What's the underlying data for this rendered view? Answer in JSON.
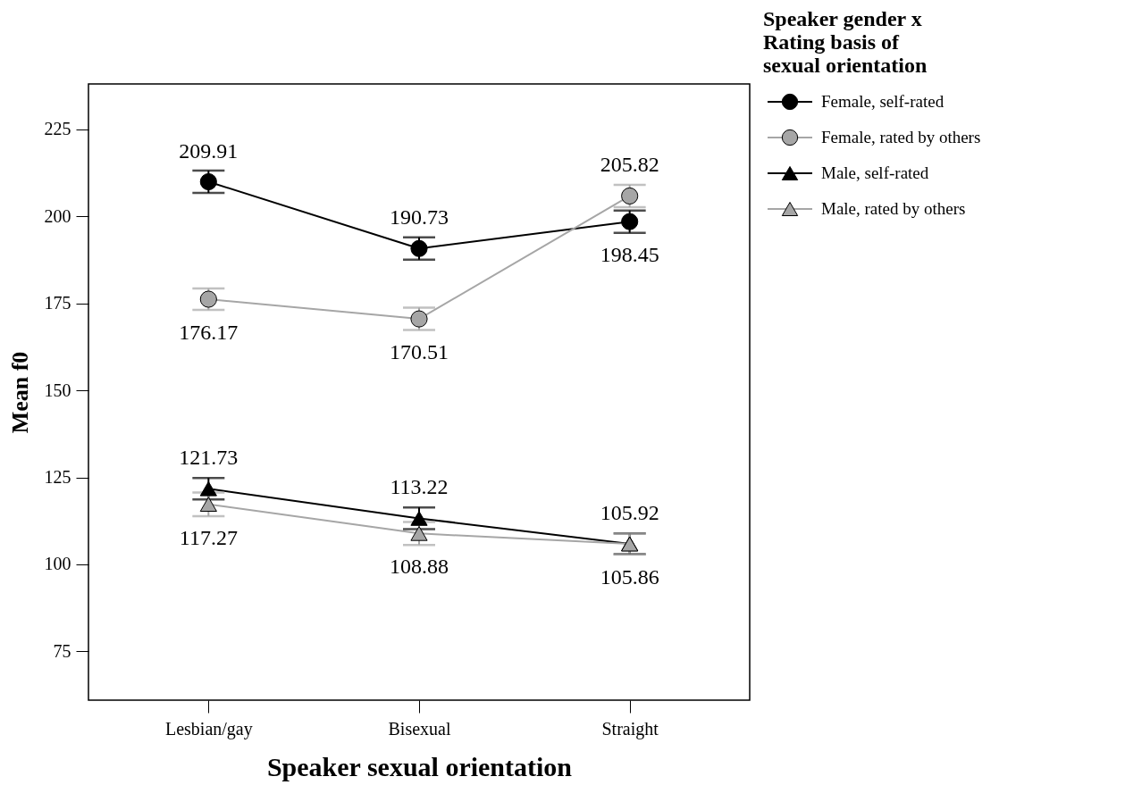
{
  "chart_data": {
    "type": "line",
    "xlabel": "Speaker sexual orientation",
    "ylabel": "Mean f0",
    "legend_title": "Speaker gender x Rating basis of sexual orientation",
    "categories": [
      "Lesbian/gay",
      "Bisexual",
      "Straight"
    ],
    "ylim": [
      61,
      238
    ],
    "yticks": [
      75,
      100,
      125,
      150,
      175,
      200,
      225
    ],
    "grid": false,
    "legend": "top right",
    "series": [
      {
        "name": "Female, self-rated",
        "color": "#000000",
        "marker": "circle",
        "values": [
          209.91,
          190.73,
          198.45
        ],
        "errors": [
          3.2,
          3.2,
          3.2
        ],
        "value_labels": [
          "209.91",
          "190.73",
          "198.45"
        ]
      },
      {
        "name": "Female, rated by others",
        "color": "#a6a6a6",
        "marker": "circle",
        "values": [
          176.17,
          170.51,
          205.82
        ],
        "errors": [
          3.1,
          3.2,
          3.2
        ],
        "value_labels": [
          "176.17",
          "170.51",
          "205.82"
        ]
      },
      {
        "name": "Male, self-rated",
        "color": "#000000",
        "marker": "triangle",
        "values": [
          121.73,
          113.22,
          105.92
        ],
        "errors": [
          3.1,
          3.1,
          3.0
        ],
        "value_labels": [
          "121.73",
          "113.22",
          "105.92"
        ]
      },
      {
        "name": "Male, rated by others",
        "color": "#a6a6a6",
        "marker": "triangle",
        "values": [
          117.27,
          108.88,
          105.86
        ],
        "errors": [
          3.4,
          3.3,
          3.0
        ],
        "value_labels": [
          "117.27",
          "108.88",
          "105.86"
        ]
      }
    ]
  }
}
